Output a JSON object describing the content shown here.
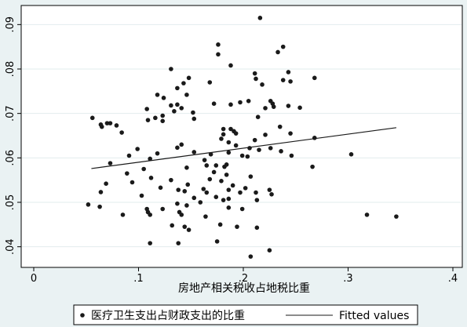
{
  "chart_data": {
    "type": "scatter",
    "title": "",
    "xlabel": "房地产相关税收占地税比重",
    "ylabel": "",
    "xlim": [
      0,
      0.4
    ],
    "ylim": [
      0.035,
      0.095
    ],
    "x_ticks": [
      0,
      0.1,
      0.2,
      0.3,
      0.4
    ],
    "x_tick_labels": [
      "0",
      ".1",
      ".2",
      ".3",
      ".4"
    ],
    "y_ticks": [
      0.04,
      0.05,
      0.06,
      0.07,
      0.08,
      0.09
    ],
    "y_tick_labels": [
      ".04",
      ".05",
      ".06",
      ".07",
      ".08",
      ".09"
    ],
    "grid": "horizontal gridlines at y ticks",
    "legend": {
      "position": "bottom",
      "entries": [
        "医疗卫生支出占财政支出的比重",
        "Fitted values"
      ]
    },
    "colors": {
      "background": "#eaf2f3",
      "plot": "#ffffff",
      "points": "#1a1a1a",
      "line": "#1a1a1a",
      "grid": "#e2ecee"
    },
    "series": [
      {
        "name": "医疗卫生支出占财政支出的比重",
        "kind": "scatter",
        "points": [
          [
            0.216,
            0.0915
          ],
          [
            0.176,
            0.0855
          ],
          [
            0.238,
            0.085
          ],
          [
            0.233,
            0.0838
          ],
          [
            0.176,
            0.0833
          ],
          [
            0.188,
            0.0808
          ],
          [
            0.131,
            0.08
          ],
          [
            0.211,
            0.079
          ],
          [
            0.243,
            0.0793
          ],
          [
            0.148,
            0.078
          ],
          [
            0.268,
            0.078
          ],
          [
            0.238,
            0.0775
          ],
          [
            0.245,
            0.0772
          ],
          [
            0.168,
            0.077
          ],
          [
            0.143,
            0.0768
          ],
          [
            0.212,
            0.0778
          ],
          [
            0.218,
            0.0765
          ],
          [
            0.137,
            0.0757
          ],
          [
            0.118,
            0.0742
          ],
          [
            0.146,
            0.0742
          ],
          [
            0.124,
            0.0735
          ],
          [
            0.205,
            0.0728
          ],
          [
            0.226,
            0.0728
          ],
          [
            0.172,
            0.0722
          ],
          [
            0.197,
            0.0725
          ],
          [
            0.131,
            0.0718
          ],
          [
            0.137,
            0.072
          ],
          [
            0.243,
            0.0717
          ],
          [
            0.254,
            0.0713
          ],
          [
            0.228,
            0.0722
          ],
          [
            0.188,
            0.072
          ],
          [
            0.108,
            0.071
          ],
          [
            0.141,
            0.0712
          ],
          [
            0.221,
            0.0712
          ],
          [
            0.229,
            0.0715
          ],
          [
            0.152,
            0.0702
          ],
          [
            0.134,
            0.0705
          ],
          [
            0.123,
            0.0695
          ],
          [
            0.056,
            0.069
          ],
          [
            0.116,
            0.069
          ],
          [
            0.214,
            0.0692
          ],
          [
            0.153,
            0.0688
          ],
          [
            0.109,
            0.0685
          ],
          [
            0.123,
            0.0683
          ],
          [
            0.235,
            0.067
          ],
          [
            0.065,
            0.067
          ],
          [
            0.073,
            0.0678
          ],
          [
            0.064,
            0.0675
          ],
          [
            0.07,
            0.0678
          ],
          [
            0.079,
            0.0673
          ],
          [
            0.181,
            0.0665
          ],
          [
            0.188,
            0.0665
          ],
          [
            0.191,
            0.066
          ],
          [
            0.181,
            0.0653
          ],
          [
            0.193,
            0.0655
          ],
          [
            0.221,
            0.0652
          ],
          [
            0.245,
            0.0655
          ],
          [
            0.084,
            0.0657
          ],
          [
            0.179,
            0.0643
          ],
          [
            0.211,
            0.064
          ],
          [
            0.268,
            0.0645
          ],
          [
            0.186,
            0.0635
          ],
          [
            0.141,
            0.063
          ],
          [
            0.193,
            0.0628
          ],
          [
            0.099,
            0.062
          ],
          [
            0.137,
            0.0623
          ],
          [
            0.206,
            0.0622
          ],
          [
            0.215,
            0.0618
          ],
          [
            0.226,
            0.0622
          ],
          [
            0.153,
            0.0613
          ],
          [
            0.186,
            0.0612
          ],
          [
            0.169,
            0.0608
          ],
          [
            0.199,
            0.0605
          ],
          [
            0.118,
            0.061
          ],
          [
            0.236,
            0.0615
          ],
          [
            0.204,
            0.0603
          ],
          [
            0.091,
            0.0605
          ],
          [
            0.111,
            0.0598
          ],
          [
            0.163,
            0.0595
          ],
          [
            0.246,
            0.0605
          ],
          [
            0.073,
            0.0588
          ],
          [
            0.303,
            0.0608
          ],
          [
            0.165,
            0.0583
          ],
          [
            0.174,
            0.0583
          ],
          [
            0.182,
            0.058
          ],
          [
            0.184,
            0.0585
          ],
          [
            0.146,
            0.0578
          ],
          [
            0.105,
            0.0575
          ],
          [
            0.266,
            0.058
          ],
          [
            0.172,
            0.0568
          ],
          [
            0.089,
            0.0565
          ],
          [
            0.207,
            0.0558
          ],
          [
            0.184,
            0.0562
          ],
          [
            0.094,
            0.0545
          ],
          [
            0.179,
            0.0548
          ],
          [
            0.069,
            0.0542
          ],
          [
            0.112,
            0.0555
          ],
          [
            0.131,
            0.055
          ],
          [
            0.168,
            0.0552
          ],
          [
            0.19,
            0.0538
          ],
          [
            0.147,
            0.054
          ],
          [
            0.162,
            0.053
          ],
          [
            0.186,
            0.0528
          ],
          [
            0.202,
            0.0532
          ],
          [
            0.225,
            0.0528
          ],
          [
            0.064,
            0.0523
          ],
          [
            0.121,
            0.0533
          ],
          [
            0.138,
            0.0528
          ],
          [
            0.144,
            0.0525
          ],
          [
            0.165,
            0.0522
          ],
          [
            0.197,
            0.0522
          ],
          [
            0.212,
            0.0522
          ],
          [
            0.227,
            0.0518
          ],
          [
            0.103,
            0.0515
          ],
          [
            0.153,
            0.051
          ],
          [
            0.174,
            0.0512
          ],
          [
            0.181,
            0.0505
          ],
          [
            0.186,
            0.0508
          ],
          [
            0.213,
            0.0505
          ],
          [
            0.052,
            0.0495
          ],
          [
            0.137,
            0.0497
          ],
          [
            0.146,
            0.0493
          ],
          [
            0.159,
            0.05
          ],
          [
            0.063,
            0.049
          ],
          [
            0.108,
            0.0485
          ],
          [
            0.123,
            0.0485
          ],
          [
            0.139,
            0.0478
          ],
          [
            0.186,
            0.0488
          ],
          [
            0.199,
            0.0485
          ],
          [
            0.109,
            0.0478
          ],
          [
            0.085,
            0.0472
          ],
          [
            0.111,
            0.0472
          ],
          [
            0.141,
            0.0472
          ],
          [
            0.164,
            0.0468
          ],
          [
            0.318,
            0.0472
          ],
          [
            0.346,
            0.0468
          ],
          [
            0.132,
            0.0448
          ],
          [
            0.144,
            0.0445
          ],
          [
            0.178,
            0.045
          ],
          [
            0.194,
            0.0445
          ],
          [
            0.213,
            0.0443
          ],
          [
            0.148,
            0.0438
          ],
          [
            0.111,
            0.0408
          ],
          [
            0.138,
            0.0408
          ],
          [
            0.175,
            0.0412
          ],
          [
            0.225,
            0.0392
          ],
          [
            0.207,
            0.0378
          ]
        ]
      },
      {
        "name": "Fitted values",
        "kind": "line",
        "points": [
          [
            0.055,
            0.0576
          ],
          [
            0.346,
            0.0668
          ]
        ]
      }
    ]
  }
}
